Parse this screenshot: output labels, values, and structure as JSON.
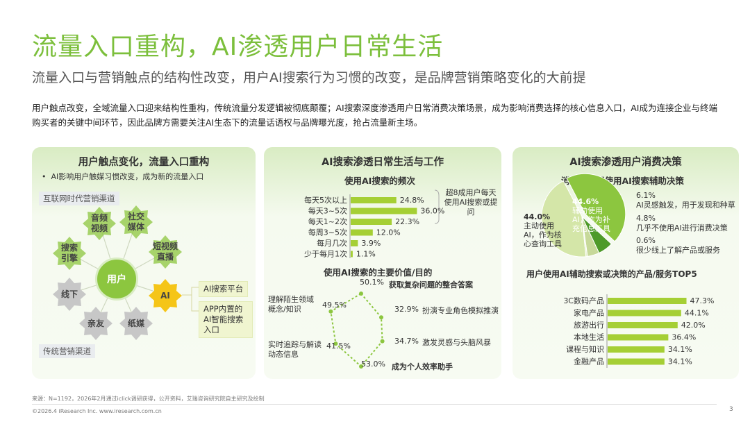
{
  "title": "流量入口重构，AI渗透用户日常生活",
  "subtitle": "流量入口与营销触点的结构性改变，用户AI搜索行为习惯的改变，是品牌营销策略变化的大前提",
  "description": "用户触点改变，全域流量入口迎来结构性重构，传统流量分发逻辑被彻底颠覆；AI搜索深度渗透用户日常消费决策场景，成为影响消费选择的核心信息入口，AI成为连接企业与终端购买者的关键中间环节，因此品牌方需要关注AI生态下的流量话语权与品牌曝光度，抢占流量新主场。",
  "panel1": {
    "title": "用户触点变化，流量入口重构",
    "bullet": "AI影响用户触媒习惯改变，成为新的流量入口",
    "tag_internet": "互联网时代营销渠道",
    "tag_traditional": "传统营销渠道",
    "center": "用户",
    "nodes": {
      "audio_video": "音频视频",
      "social": "社交媒体",
      "short_video": "短视频直播",
      "search": "搜索引擎",
      "offline": "线下",
      "friends": "亲友",
      "paper": "纸媒",
      "ai": "AI"
    },
    "ai_chip1": "AI搜索平台",
    "ai_chip2": "APP内置的AI智能搜索入口",
    "colors": {
      "green": "#8cc63f",
      "yellow": "#f5c518",
      "gray": "#c7c7c7"
    }
  },
  "panel2": {
    "title": "AI搜索渗透日常生活与工作",
    "freq_title": "使用AI搜索的频次",
    "freq_note": "超8成用户每天使用AI搜索或提问",
    "value_title": "使用AI搜索的主要价值/目的",
    "radar": {
      "top_value": "50.1%",
      "top_label": "获取复杂问题的整合答案",
      "r1_value": "32.9%",
      "r1_label": "扮演专业角色模拟推演",
      "r2_value": "34.7%",
      "r2_label": "激发灵感与头脑风暴",
      "bottom_value": "53.0%",
      "bottom_label": "成为个人效率助手",
      "l2_value": "41.5%",
      "l2_label": "实时追踪与解读动态信息",
      "l1_value": "49.5%",
      "l1_label": "理解陌生领域概念/知识"
    }
  },
  "panel3": {
    "title": "AI搜索渗透用户消费决策",
    "decision_title": "消费前是否使用AI搜索辅助决策",
    "pie": {
      "s1_value": "44.0%",
      "s1_label": "主动使用AI，作为核心查询工具",
      "s2_value": "44.6%",
      "s2_label": "辅助使用AI，作为补充信息工具",
      "s3_value": "6.1%",
      "s3_label": "AI灵感触发，用于发现和种草",
      "s4_value": "4.8%",
      "s4_label": "几乎不使用AI进行消费决策",
      "s5_value": "0.6%",
      "s5_label": "很少线上了解产品或服务"
    },
    "top5_title": "用户使用AI辅助搜索或决策的产品/服务TOP5"
  },
  "chart_data": [
    {
      "type": "bar",
      "orientation": "horizontal",
      "title": "使用AI搜索的频次",
      "categories": [
        "每天5次以上",
        "每天3~5次",
        "每天1~2次",
        "每周3~5次",
        "每月几次",
        "少于每月1次"
      ],
      "values": [
        24.8,
        36.0,
        22.3,
        12.0,
        3.9,
        1.1
      ],
      "labels": [
        "24.8%",
        "36.0%",
        "22.3%",
        "12.0%",
        "3.9%",
        "1.1%"
      ],
      "color": "#a5cf35"
    },
    {
      "type": "bar",
      "orientation": "horizontal",
      "title": "用户使用AI辅助搜索或决策的产品/服务TOP5",
      "categories": [
        "3C数码产品",
        "家电产品",
        "旅游出行",
        "本地生活",
        "课程与知识",
        "金融产品"
      ],
      "values": [
        47.3,
        44.1,
        42.0,
        36.4,
        34.1,
        34.1
      ],
      "labels": [
        "47.3%",
        "44.1%",
        "42.0%",
        "36.4%",
        "34.1%",
        "34.1%"
      ],
      "color": "#a5cf35"
    },
    {
      "type": "radar",
      "title": "使用AI搜索的主要价值/目的",
      "categories": [
        "获取复杂问题的整合答案",
        "扮演专业角色模拟推演",
        "激发灵感与头脑风暴",
        "成为个人效率助手",
        "实时追踪与解读动态信息",
        "理解陌生领域概念/知识"
      ],
      "values": [
        50.1,
        32.9,
        34.7,
        53.0,
        41.5,
        49.5
      ],
      "color": "#8cc63f"
    },
    {
      "type": "pie",
      "title": "消费前是否使用AI搜索辅助决策",
      "categories": [
        "主动使用AI，作为核心查询工具",
        "辅助使用AI，作为补充信息工具",
        "AI灵感触发，用于发现和种草",
        "几乎不使用AI进行消费决策",
        "很少线上了解产品或服务"
      ],
      "values": [
        44.0,
        44.6,
        6.1,
        4.8,
        0.6
      ],
      "colors": [
        "#d4e6a8",
        "#8cc63f",
        "#4e9a2a",
        "#c7d99a",
        "#e8f1d2"
      ]
    }
  ],
  "footer": {
    "source": "来源：N=1192，2026年2月通过iclick调研获得，公开资料，艾瑞咨询研究院自主研究及绘制",
    "copyright": "©2026.4 iResearch Inc. www.iresearch.com.cn",
    "page": "3"
  }
}
